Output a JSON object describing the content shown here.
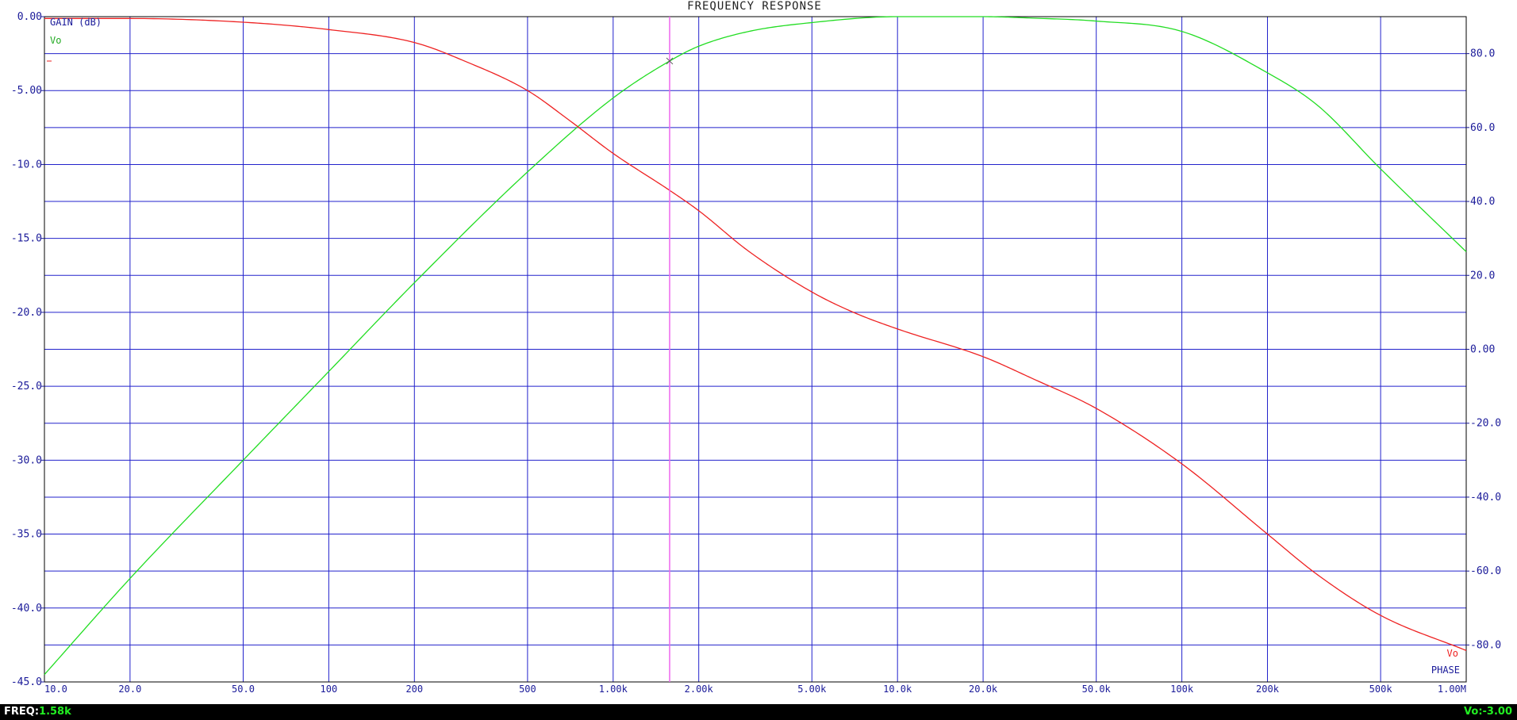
{
  "chart_data": {
    "type": "line",
    "title": "FREQUENCY RESPONSE",
    "x_scale": "log",
    "xlim": [
      10,
      1000000
    ],
    "x_ticks": [
      {
        "value": 10,
        "label": "10.0"
      },
      {
        "value": 20,
        "label": "20.0"
      },
      {
        "value": 50,
        "label": "50.0"
      },
      {
        "value": 100,
        "label": "100"
      },
      {
        "value": 200,
        "label": "200"
      },
      {
        "value": 500,
        "label": "500"
      },
      {
        "value": 1000,
        "label": "1.00k"
      },
      {
        "value": 2000,
        "label": "2.00k"
      },
      {
        "value": 5000,
        "label": "5.00k"
      },
      {
        "value": 10000,
        "label": "10.0k"
      },
      {
        "value": 20000,
        "label": "20.0k"
      },
      {
        "value": 50000,
        "label": "50.0k"
      },
      {
        "value": 100000,
        "label": "100k"
      },
      {
        "value": 200000,
        "label": "200k"
      },
      {
        "value": 500000,
        "label": "500k"
      },
      {
        "value": 1000000,
        "label": "1.00M"
      }
    ],
    "y_left": {
      "label": "GAIN (dB)",
      "ylim": [
        -45,
        0
      ],
      "ticks": [
        {
          "value": 0,
          "label": "0.00"
        },
        {
          "value": -5,
          "label": "-5.00"
        },
        {
          "value": -10,
          "label": "-10.0"
        },
        {
          "value": -15,
          "label": "-15.0"
        },
        {
          "value": -20,
          "label": "-20.0"
        },
        {
          "value": -25,
          "label": "-25.0"
        },
        {
          "value": -30,
          "label": "-30.0"
        },
        {
          "value": -35,
          "label": "-35.0"
        },
        {
          "value": -40,
          "label": "-40.0"
        },
        {
          "value": -45,
          "label": "-45.0"
        }
      ]
    },
    "y_right": {
      "label": "PHASE",
      "ylim": [
        -90,
        90
      ],
      "ticks": [
        {
          "value": 80,
          "label": "80.0"
        },
        {
          "value": 60,
          "label": "60.0"
        },
        {
          "value": 40,
          "label": "40.0"
        },
        {
          "value": 20,
          "label": "20.0"
        },
        {
          "value": 0,
          "label": "0.00"
        },
        {
          "value": -20,
          "label": "-20.0"
        },
        {
          "value": -40,
          "label": "-40.0"
        },
        {
          "value": -60,
          "label": "-60.0"
        },
        {
          "value": -80,
          "label": "-80.0"
        }
      ]
    },
    "grid": true,
    "series": [
      {
        "name": "Vo",
        "quantity": "gain",
        "axis": "left",
        "color": "#22dd22",
        "x": [
          10,
          20,
          50,
          100,
          200,
          500,
          1000,
          1580,
          2000,
          3000,
          5000,
          10000,
          20000,
          30000,
          50000,
          100000,
          200000,
          300000,
          500000,
          1000000
        ],
        "y": [
          -44.5,
          -38.0,
          -30.0,
          -24.0,
          -18.0,
          -10.5,
          -5.5,
          -3.0,
          -2.0,
          -1.0,
          -0.4,
          0.0,
          0.0,
          -0.1,
          -0.3,
          -1.0,
          -3.8,
          -6.0,
          -10.3,
          -15.9
        ]
      },
      {
        "name": "Vo",
        "quantity": "phase",
        "axis": "right",
        "color": "#ee2222",
        "x": [
          10,
          20,
          50,
          100,
          200,
          300,
          500,
          700,
          1000,
          1580,
          2000,
          3000,
          5000,
          7000,
          10000,
          20000,
          30000,
          50000,
          100000,
          200000,
          300000,
          500000,
          1000000
        ],
        "y": [
          89.5,
          89.5,
          88.5,
          86.5,
          83.0,
          78.0,
          70.0,
          62.0,
          53.0,
          43.0,
          37.5,
          26.5,
          15.5,
          10.0,
          5.5,
          -2.0,
          -8.0,
          -16.0,
          -31.0,
          -50.0,
          -61.0,
          -72.0,
          -81.5
        ]
      }
    ]
  },
  "legend": {
    "gain_series": "Vo",
    "phase_series": "Vo"
  },
  "cursor": {
    "freq": 1580,
    "gain_db": -3.0,
    "color": "#ee66ee"
  },
  "status": {
    "freq_label": "FREQ:",
    "freq_value": "1.58k",
    "vo_value": "Vo:-3.00"
  },
  "colors": {
    "grid": "#2222cc",
    "axis_text": "#1a1a99",
    "frame": "#000000",
    "status_label": "#ffffff",
    "status_value": "#22ee22"
  }
}
